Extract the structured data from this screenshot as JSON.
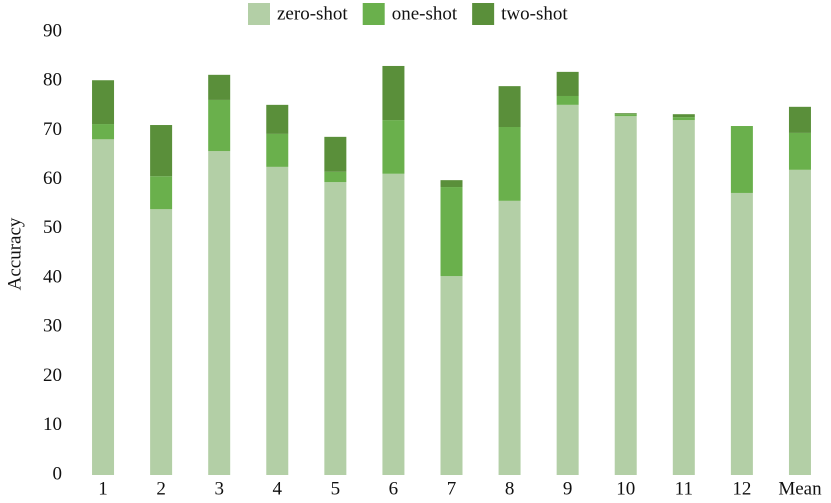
{
  "chart_data": {
    "type": "stacked_bar",
    "y_label": "Accuracy",
    "categories": [
      "1",
      "2",
      "3",
      "4",
      "5",
      "6",
      "7",
      "8",
      "9",
      "10",
      "11",
      "12",
      "Mean"
    ],
    "series": [
      {
        "name": "zero-shot",
        "color": "#b3cfa6",
        "values": [
          68.2,
          54.0,
          65.8,
          62.6,
          59.5,
          61.2,
          40.4,
          55.7,
          75.2,
          72.9,
          72.1,
          57.3,
          62.0
        ]
      },
      {
        "name": "one-shot",
        "color": "#6ab04c",
        "values": [
          3.1,
          6.7,
          10.4,
          6.7,
          2.1,
          10.9,
          18.1,
          15.0,
          1.8,
          0.4,
          0.6,
          13.6,
          7.5
        ]
      },
      {
        "name": "two-shot",
        "color": "#5a8f3a",
        "values": [
          8.9,
          10.4,
          5.1,
          5.9,
          7.1,
          11.0,
          1.4,
          8.3,
          4.9,
          0.2,
          0.6,
          0,
          5.3
        ]
      }
    ],
    "ylim": [
      0,
      90
    ],
    "yticks": [
      0,
      10,
      20,
      30,
      40,
      50,
      60,
      70,
      80,
      90
    ],
    "legend": "top"
  }
}
